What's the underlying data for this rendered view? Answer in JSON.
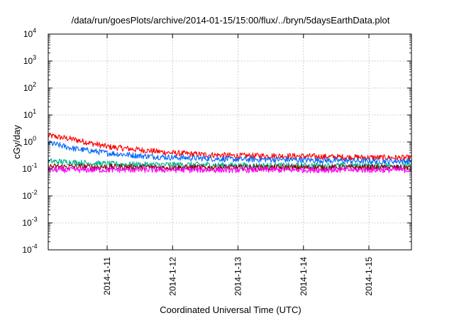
{
  "chart_data": {
    "type": "line",
    "title": "/data/run/goesPlots/archive/2014-01-15/15:00/flux/../bryn/5daysEarthData.plot",
    "xlabel": "Coordinated Universal Time (UTC)",
    "ylabel": "cGy/day",
    "yscale": "log",
    "ylim_exp": [
      -4,
      4
    ],
    "y_tick_exponents": [
      -4,
      -3,
      -2,
      -1,
      0,
      1,
      2,
      3,
      4
    ],
    "y_tick_base": "10",
    "x_unit": "days",
    "xlim": [
      10.1,
      15.65
    ],
    "x_ticks": [
      {
        "pos": 11,
        "label": "2014-1-11"
      },
      {
        "pos": 12,
        "label": "2014-1-12"
      },
      {
        "pos": 13,
        "label": "2014-1-13"
      },
      {
        "pos": 14,
        "label": "2014-1-14"
      },
      {
        "pos": 15,
        "label": "2014-1-15"
      }
    ],
    "grid": true,
    "series": [
      {
        "color": "#ff0000",
        "points": [
          [
            10.1,
            1.7
          ],
          [
            10.5,
            1.2
          ],
          [
            11.0,
            0.65
          ],
          [
            11.5,
            0.5
          ],
          [
            12.0,
            0.38
          ],
          [
            12.5,
            0.33
          ],
          [
            13.0,
            0.3
          ],
          [
            13.5,
            0.3
          ],
          [
            14.0,
            0.29
          ],
          [
            14.5,
            0.27
          ],
          [
            15.0,
            0.26
          ],
          [
            15.65,
            0.25
          ]
        ]
      },
      {
        "color": "#0066ff",
        "points": [
          [
            10.1,
            0.9
          ],
          [
            10.5,
            0.55
          ],
          [
            11.0,
            0.38
          ],
          [
            11.5,
            0.3
          ],
          [
            12.0,
            0.26
          ],
          [
            12.5,
            0.24
          ],
          [
            13.0,
            0.22
          ],
          [
            13.5,
            0.22
          ],
          [
            14.0,
            0.21
          ],
          [
            14.5,
            0.2
          ],
          [
            15.0,
            0.19
          ],
          [
            15.65,
            0.19
          ]
        ]
      },
      {
        "color": "#00b38c",
        "points": [
          [
            10.1,
            0.19
          ],
          [
            10.5,
            0.17
          ],
          [
            11.0,
            0.15
          ],
          [
            11.5,
            0.14
          ],
          [
            12.0,
            0.14
          ],
          [
            12.5,
            0.14
          ],
          [
            13.0,
            0.13
          ],
          [
            13.5,
            0.13
          ],
          [
            14.0,
            0.13
          ],
          [
            14.5,
            0.13
          ],
          [
            15.0,
            0.13
          ],
          [
            15.65,
            0.13
          ]
        ]
      },
      {
        "color": "#8b0000",
        "points": [
          [
            10.1,
            0.12
          ],
          [
            11.0,
            0.115
          ],
          [
            12.0,
            0.11
          ],
          [
            13.0,
            0.11
          ],
          [
            14.0,
            0.11
          ],
          [
            15.0,
            0.11
          ],
          [
            15.65,
            0.11
          ]
        ]
      },
      {
        "color": "#ff00ff",
        "points": [
          [
            10.1,
            0.09
          ],
          [
            11.0,
            0.09
          ],
          [
            12.0,
            0.09
          ],
          [
            13.0,
            0.09
          ],
          [
            14.0,
            0.09
          ],
          [
            15.0,
            0.09
          ],
          [
            15.65,
            0.09
          ]
        ]
      }
    ]
  }
}
